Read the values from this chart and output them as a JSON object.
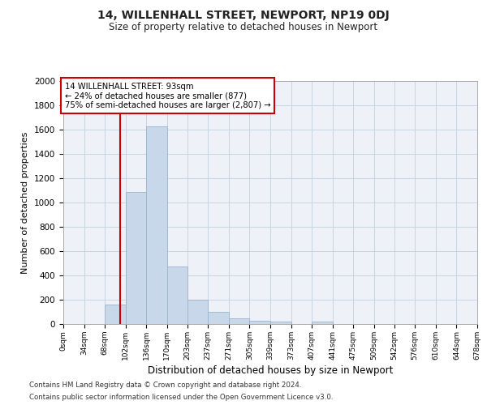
{
  "title": "14, WILLENHALL STREET, NEWPORT, NP19 0DJ",
  "subtitle": "Size of property relative to detached houses in Newport",
  "xlabel": "Distribution of detached houses by size in Newport",
  "ylabel": "Number of detached properties",
  "footnote1": "Contains HM Land Registry data © Crown copyright and database right 2024.",
  "footnote2": "Contains public sector information licensed under the Open Government Licence v3.0.",
  "bar_color": "#c8d8ea",
  "bar_edge_color": "#9ab4cc",
  "grid_color": "#c8d4e4",
  "annotation_box_color": "#cc0000",
  "vline_color": "#cc0000",
  "bin_edges": [
    0,
    34,
    68,
    102,
    136,
    170,
    203,
    237,
    271,
    305,
    339,
    373,
    407,
    441,
    475,
    509,
    542,
    576,
    610,
    644,
    678
  ],
  "bin_labels": [
    "0sqm",
    "34sqm",
    "68sqm",
    "102sqm",
    "136sqm",
    "170sqm",
    "203sqm",
    "237sqm",
    "271sqm",
    "305sqm",
    "339sqm",
    "373sqm",
    "407sqm",
    "441sqm",
    "475sqm",
    "509sqm",
    "542sqm",
    "576sqm",
    "610sqm",
    "644sqm",
    "678sqm"
  ],
  "bar_heights": [
    0,
    0,
    160,
    1090,
    1630,
    475,
    200,
    100,
    45,
    28,
    20,
    0,
    20,
    0,
    0,
    0,
    0,
    0,
    0,
    0
  ],
  "property_size": 93,
  "vline_x": 93,
  "annotation_line1": "14 WILLENHALL STREET: 93sqm",
  "annotation_line2": "← 24% of detached houses are smaller (877)",
  "annotation_line3": "75% of semi-detached houses are larger (2,807) →",
  "ylim": [
    0,
    2000
  ],
  "yticks": [
    0,
    200,
    400,
    600,
    800,
    1000,
    1200,
    1400,
    1600,
    1800,
    2000
  ],
  "background_color": "#ffffff",
  "plot_bg_color": "#eef2f8"
}
